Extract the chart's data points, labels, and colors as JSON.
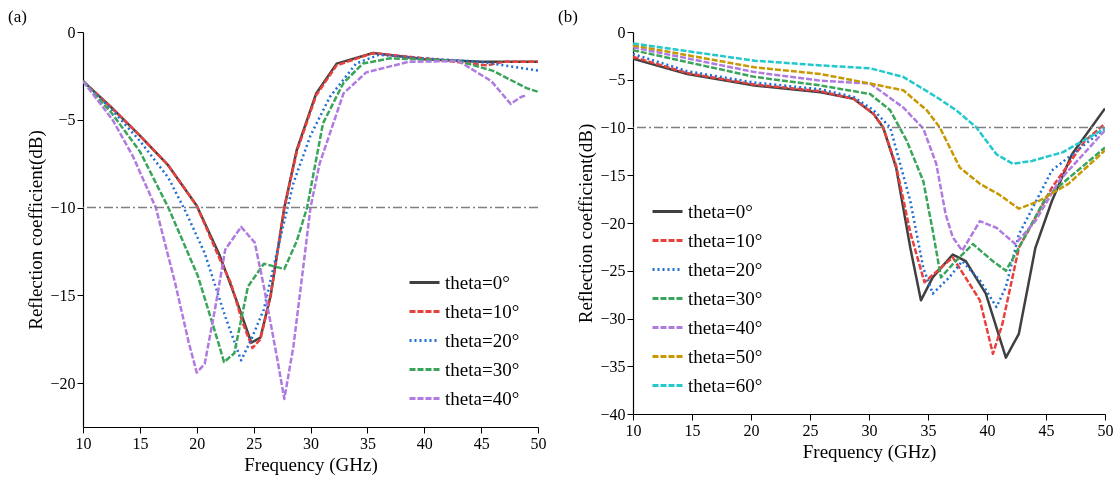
{
  "chart_data": [
    {
      "type": "line",
      "title": "(a)",
      "xlabel": "Frequency (GHz)",
      "ylabel": "Reflection coefficient(dB)",
      "xlim": [
        10,
        50
      ],
      "xticks": [
        10,
        15,
        20,
        25,
        30,
        35,
        40,
        45,
        50
      ],
      "ylim": [
        -22.5,
        0
      ],
      "yticks": [
        0,
        -5,
        -10,
        -15,
        -20
      ],
      "grid": false,
      "legend": "bottom right",
      "marker": "none",
      "ref_lines": [
        {
          "axis": "y",
          "value": -10,
          "color": "#808080",
          "line_style": "dashed"
        }
      ],
      "series": [
        {
          "name": "theta=0°",
          "color": "#404040",
          "line_style": "solid",
          "x": [
            10,
            12.5,
            15,
            17.5,
            20,
            22,
            23.5,
            24.8,
            25.6,
            26.5,
            27.7,
            28.8,
            30.5,
            32.3,
            35.5,
            40,
            45,
            50
          ],
          "values": [
            -2.8,
            -4.3,
            -5.9,
            -7.6,
            -9.9,
            -12.7,
            -15.3,
            -17.7,
            -17.4,
            -15,
            -10,
            -6.7,
            -3.5,
            -1.8,
            -1.2,
            -1.55,
            -1.7,
            -1.7
          ]
        },
        {
          "name": "theta=10°",
          "color": "#e8403d",
          "line_style": "dashed",
          "x": [
            10,
            12.5,
            15,
            17.5,
            20,
            22,
            23,
            24,
            24.9,
            25.6,
            26.5,
            27.7,
            28.8,
            30.5,
            32.3,
            35.5,
            40,
            45.5,
            47,
            50
          ],
          "values": [
            -2.8,
            -4.3,
            -5.9,
            -7.6,
            -9.9,
            -12.9,
            -14.3,
            -16.5,
            -18,
            -17.5,
            -15,
            -10,
            -6.8,
            -3.6,
            -1.9,
            -1.2,
            -1.5,
            -1.9,
            -1.7,
            -1.7
          ]
        },
        {
          "name": "theta=20°",
          "color": "#1f6fd6",
          "line_style": "dotted",
          "x": [
            10,
            12.5,
            15,
            17.5,
            19,
            20.7,
            22.5,
            23.9,
            24.8,
            25.9,
            27.1,
            28.5,
            30,
            31.7,
            34,
            36,
            40,
            45,
            48,
            50
          ],
          "values": [
            -2.8,
            -4.4,
            -6.2,
            -8.3,
            -10.2,
            -12.6,
            -16.2,
            -18.7,
            -17.5,
            -15.8,
            -12.4,
            -8.6,
            -5.9,
            -3.7,
            -1.8,
            -1.3,
            -1.5,
            -1.7,
            -2,
            -2.2
          ]
        },
        {
          "name": "theta=30°",
          "color": "#3aa55a",
          "line_style": "dashed",
          "x": [
            10,
            12.5,
            15,
            17.5,
            20.1,
            21.9,
            22.4,
            23.3,
            24.5,
            25.9,
            27.7,
            28.8,
            29.7,
            31.1,
            32.9,
            34.6,
            37,
            43,
            46,
            49,
            50
          ],
          "values": [
            -2.8,
            -4.6,
            -6.8,
            -10,
            -13.9,
            -17.7,
            -18.8,
            -18.3,
            -14.5,
            -13.2,
            -13.5,
            -11.9,
            -10,
            -5.2,
            -2.9,
            -1.8,
            -1.5,
            -1.65,
            -2.2,
            -3.2,
            -3.4
          ]
        },
        {
          "name": "theta=40°",
          "color": "#b07be0",
          "line_style": "dashed",
          "x": [
            10,
            12.6,
            14.4,
            16.4,
            18.1,
            19.3,
            20,
            20.7,
            21.6,
            22.5,
            23.9,
            25.1,
            25.9,
            27.1,
            27.7,
            28.5,
            29.4,
            30,
            30.8,
            32.9,
            34.9,
            38.6,
            43,
            45.9,
            47.6,
            48.5,
            49
          ],
          "values": [
            -2.8,
            -5,
            -7.1,
            -10,
            -14.3,
            -17.7,
            -19.4,
            -18.9,
            -15.8,
            -12.4,
            -11.1,
            -12,
            -14.5,
            -18.7,
            -20.9,
            -17.9,
            -13.2,
            -10,
            -7.5,
            -3.5,
            -2.3,
            -1.7,
            -1.65,
            -2.8,
            -4.1,
            -3.7,
            -3.6
          ]
        }
      ]
    },
    {
      "type": "line",
      "title": "(b)",
      "xlabel": "Frequency (GHz)",
      "ylabel": "Reflection coefficient(dB)",
      "xlim": [
        10,
        50
      ],
      "xticks": [
        10,
        15,
        20,
        25,
        30,
        35,
        40,
        45,
        50
      ],
      "ylim": [
        -40,
        0
      ],
      "yticks": [
        0,
        -5,
        -10,
        -15,
        -20,
        -25,
        -30,
        -35,
        -40
      ],
      "grid": false,
      "legend": "bottom left",
      "marker": "none",
      "ref_lines": [
        {
          "axis": "y",
          "value": -10,
          "color": "#808080",
          "line_style": "dashed"
        }
      ],
      "series": [
        {
          "name": "theta=0°",
          "color": "#404040",
          "line_style": "solid",
          "x": [
            10,
            14.6,
            20.3,
            25.9,
            28.7,
            30.4,
            31.2,
            32.3,
            33.5,
            34.4,
            35.4,
            37.1,
            38.2,
            39.9,
            41.6,
            42.7,
            44.1,
            45.5,
            47.2,
            50
          ],
          "values": [
            -2.8,
            -4.4,
            -5.6,
            -6.3,
            -7,
            -8.6,
            -10,
            -14.2,
            -22.6,
            -28.1,
            -25.7,
            -23.3,
            -24,
            -27.4,
            -34.1,
            -31.6,
            -22.6,
            -17.7,
            -12.8,
            -8
          ]
        },
        {
          "name": "theta=10°",
          "color": "#e8403d",
          "line_style": "dashed",
          "x": [
            10,
            14.6,
            20.3,
            25.9,
            28.7,
            30.4,
            31.2,
            32.3,
            33.5,
            34.7,
            37.1,
            39.4,
            40.5,
            41.3,
            42.7,
            45.5,
            48.3,
            50
          ],
          "values": [
            -2.6,
            -4.3,
            -5.5,
            -6.2,
            -7,
            -8.6,
            -10,
            -14,
            -21,
            -26.2,
            -23.6,
            -28.1,
            -33.7,
            -30.6,
            -22.6,
            -16.3,
            -11.4,
            -9.6
          ]
        },
        {
          "name": "theta=20°",
          "color": "#1f6fd6",
          "line_style": "dotted",
          "x": [
            10,
            14.6,
            20.3,
            25.9,
            28.7,
            30.4,
            31.8,
            33.5,
            34.6,
            35.4,
            36.8,
            37.9,
            39.4,
            40.8,
            41.6,
            42.7,
            45.5,
            50
          ],
          "values": [
            -2.3,
            -4.1,
            -5.3,
            -6,
            -6.8,
            -8.2,
            -10,
            -17.7,
            -24.7,
            -27.4,
            -25.7,
            -24,
            -26,
            -28.8,
            -26.7,
            -21.2,
            -14.5,
            -10.1
          ]
        },
        {
          "name": "theta=30°",
          "color": "#3aa55a",
          "line_style": "dashed",
          "x": [
            10,
            20.3,
            25.9,
            30.1,
            31.8,
            33.2,
            34.6,
            35.4,
            36.1,
            37.1,
            38.8,
            40.5,
            41.6,
            42.7,
            45,
            50
          ],
          "values": [
            -1.9,
            -4.7,
            -5.6,
            -6.5,
            -8.2,
            -11.4,
            -15.6,
            -20.8,
            -25.7,
            -24.3,
            -22.2,
            -24,
            -25,
            -22.6,
            -17.3,
            -12.1
          ]
        },
        {
          "name": "theta=40°",
          "color": "#b07be0",
          "line_style": "dashed",
          "x": [
            10,
            20.3,
            25.9,
            30.1,
            32.9,
            34.6,
            35.7,
            36.5,
            37.1,
            37.9,
            39.4,
            40.8,
            42.4,
            44.1,
            46.1,
            50
          ],
          "values": [
            -1.6,
            -4.2,
            -5.1,
            -5.4,
            -7.9,
            -10.1,
            -13.8,
            -19.1,
            -21.5,
            -22.9,
            -19.8,
            -20.5,
            -22.2,
            -19.8,
            -15.6,
            -10.3
          ]
        },
        {
          "name": "theta=50°",
          "color": "#c89800",
          "line_style": "dashed",
          "x": [
            10,
            20.3,
            25.9,
            30.1,
            32.9,
            34.9,
            36,
            37.7,
            39.4,
            41,
            42.7,
            44.4,
            46.9,
            50
          ],
          "values": [
            -1.4,
            -3.7,
            -4.4,
            -5.4,
            -6.1,
            -8.2,
            -10,
            -14.2,
            -15.9,
            -17,
            -18.5,
            -17.7,
            -15.9,
            -12.4
          ]
        },
        {
          "name": "theta=60°",
          "color": "#22c8cc",
          "line_style": "dashed",
          "x": [
            10,
            20.3,
            25.9,
            30.1,
            32.9,
            35.7,
            37.4,
            39.1,
            40.8,
            42.2,
            43.8,
            46.4,
            50
          ],
          "values": [
            -1.2,
            -3,
            -3.5,
            -3.8,
            -4.7,
            -6.8,
            -8.2,
            -10,
            -12.8,
            -13.8,
            -13.5,
            -12.6,
            -10.1
          ]
        }
      ]
    }
  ]
}
